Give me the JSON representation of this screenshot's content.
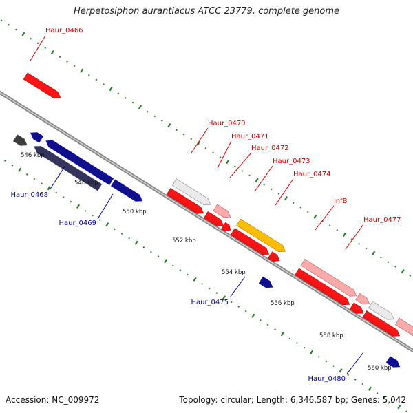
{
  "header": {
    "title": "Herpetosiphon aurantiacus ATCC 23779, complete genome"
  },
  "footer": {
    "accession": "Accession: NC_009972",
    "summary": "Topology: circular; Length: 6,346,587 bp; Genes: 5,042"
  },
  "colors": {
    "backbone": "#8a8a8a",
    "tick_major": "#2a7a2a",
    "tick_minor": "#2a7a2a",
    "gene_red": "#ee1111",
    "gene_pink": "#ee8888",
    "gene_blue": "#1a1aee",
    "gene_navy": "#55559a",
    "gene_gray": "#bbbbbb",
    "gene_dark_gray": "#666666",
    "gene_orange": "#ff9900",
    "label_red": "#cc0000",
    "label_blue": "#000099",
    "kbp_text": "#111111"
  },
  "kbp_labels": [
    {
      "text": "546 kbp"
    },
    {
      "text": "548 kbp"
    },
    {
      "text": "550 kbp"
    },
    {
      "text": "552 kbp"
    },
    {
      "text": "554 kbp"
    },
    {
      "text": "556 kbp"
    },
    {
      "text": "558 kbp"
    },
    {
      "text": "560 kbp"
    }
  ],
  "gene_labels": [
    {
      "text": "Haur_0466",
      "strand": "forward"
    },
    {
      "text": "Haur_0470",
      "strand": "forward"
    },
    {
      "text": "Haur_0471",
      "strand": "forward"
    },
    {
      "text": "Haur_0472",
      "strand": "forward"
    },
    {
      "text": "Haur_0473",
      "strand": "forward"
    },
    {
      "text": "Haur_0474",
      "strand": "forward"
    },
    {
      "text": "infB",
      "strand": "forward"
    },
    {
      "text": "Haur_0477",
      "strand": "forward"
    },
    {
      "text": "Haur_0468",
      "strand": "reverse"
    },
    {
      "text": "Haur_0469",
      "strand": "reverse"
    },
    {
      "text": "Haur_0475",
      "strand": "reverse"
    },
    {
      "text": "Haur_0480",
      "strand": "reverse"
    }
  ]
}
